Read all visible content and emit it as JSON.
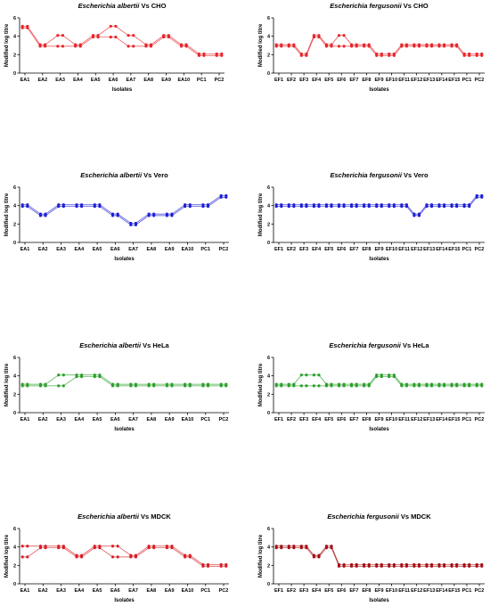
{
  "chart_data": [
    {
      "type": "line",
      "title": "Escherichia albertii Vs CHO",
      "title_italic": "Escherichia albertii",
      "title_rest": " Vs CHO",
      "xlabel": "Isolates",
      "ylabel": "Modified log titre",
      "ylim": [
        0,
        6
      ],
      "yticks": [
        "0",
        "2",
        "4",
        "6"
      ],
      "categories": [
        "EA1",
        "EA2",
        "EA3",
        "EA4",
        "EA5",
        "EA6",
        "EA7",
        "EA8",
        "EA9",
        "EA10",
        "PC1",
        "PC2"
      ],
      "color": "#e8262b",
      "series": [
        {
          "values": [
            5,
            3,
            4,
            3,
            4,
            5,
            4,
            3,
            4,
            3,
            2,
            2
          ]
        },
        {
          "values": [
            5,
            3,
            3,
            3,
            4,
            4,
            3,
            3,
            4,
            3,
            2,
            2
          ]
        }
      ]
    },
    {
      "type": "line",
      "title": "Escherichia fergusonii Vs CHO",
      "title_italic": "Escherichia fergusonii",
      "title_rest": " Vs CHO",
      "xlabel": "Isolates",
      "ylabel": "Modified log titre",
      "ylim": [
        0,
        6
      ],
      "yticks": [
        "0",
        "2",
        "4",
        "6"
      ],
      "categories": [
        "EF1",
        "EF2",
        "EF3",
        "EF4",
        "EF5",
        "EF6",
        "EF7",
        "EF8",
        "EF9",
        "EF10",
        "EF11",
        "EF12",
        "EF13",
        "EF14",
        "EF15",
        "PC1",
        "PC2"
      ],
      "color": "#e8262b",
      "series": [
        {
          "values": [
            3,
            3,
            2,
            4,
            3,
            4,
            3,
            3,
            2,
            2,
            3,
            3,
            3,
            3,
            3,
            2,
            2
          ]
        },
        {
          "values": [
            3,
            3,
            2,
            4,
            3,
            3,
            3,
            3,
            2,
            2,
            3,
            3,
            3,
            3,
            3,
            2,
            2
          ]
        }
      ]
    },
    {
      "type": "line",
      "title": "Escherichia albertii Vs Vero",
      "title_italic": "Escherichia albertii",
      "title_rest": " Vs Vero",
      "xlabel": "Isolates",
      "ylabel": "Modified log titre",
      "ylim": [
        0,
        6
      ],
      "yticks": [
        "0",
        "2",
        "4",
        "6"
      ],
      "categories": [
        "EA1",
        "EA2",
        "EA3",
        "EA4",
        "EA5",
        "EA6",
        "EA7",
        "EA8",
        "EA9",
        "EA10",
        "PC1",
        "PC2"
      ],
      "color": "#1f1fd6",
      "series": [
        {
          "values": [
            4,
            3,
            4,
            4,
            4,
            3,
            2,
            3,
            3,
            4,
            4,
            5
          ]
        },
        {
          "values": [
            4,
            3,
            4,
            4,
            4,
            3,
            2,
            3,
            3,
            4,
            4,
            5
          ]
        }
      ]
    },
    {
      "type": "line",
      "title": "Escherichia fergusonii Vs Vero",
      "title_italic": "Escherichia fergusonii",
      "title_rest": " Vs Vero",
      "xlabel": "Isolates",
      "ylabel": "Modified log titre",
      "ylim": [
        0,
        6
      ],
      "yticks": [
        "0",
        "2",
        "4",
        "6"
      ],
      "categories": [
        "EF1",
        "EF2",
        "EF3",
        "EF4",
        "EF5",
        "EF6",
        "EF7",
        "EF8",
        "EF9",
        "EF10",
        "EF11",
        "EF12",
        "EF13",
        "EF14",
        "EF15",
        "PC1",
        "PC2"
      ],
      "color": "#1f1fd6",
      "series": [
        {
          "values": [
            4,
            4,
            4,
            4,
            4,
            4,
            4,
            4,
            4,
            4,
            4,
            3,
            4,
            4,
            4,
            4,
            5
          ]
        },
        {
          "values": [
            4,
            4,
            4,
            4,
            4,
            4,
            4,
            4,
            4,
            4,
            4,
            3,
            4,
            4,
            4,
            4,
            5
          ]
        }
      ]
    },
    {
      "type": "line",
      "title": "Escherichia albertii Vs HeLa",
      "title_italic": "Escherichia albertii",
      "title_rest": " Vs HeLa",
      "xlabel": "Isolates",
      "ylabel": "Modified log titre",
      "ylim": [
        0,
        6
      ],
      "yticks": [
        "0",
        "2",
        "4",
        "6"
      ],
      "categories": [
        "EA1",
        "EA2",
        "EA3",
        "EA4",
        "EA5",
        "EA6",
        "EA7",
        "EA8",
        "EA9",
        "EA10",
        "PC1",
        "PC2"
      ],
      "color": "#2ca02c",
      "series": [
        {
          "values": [
            3,
            3,
            4,
            4,
            4,
            3,
            3,
            3,
            3,
            3,
            3,
            3
          ]
        },
        {
          "values": [
            3,
            3,
            3,
            4,
            4,
            3,
            3,
            3,
            3,
            3,
            3,
            3
          ]
        }
      ]
    },
    {
      "type": "line",
      "title": "Escherichia fergusonii Vs HeLa",
      "title_italic": "Escherichia fergusonii",
      "title_rest": " Vs HeLa",
      "xlabel": "Isolates",
      "ylabel": "Modified log titre",
      "ylim": [
        0,
        6
      ],
      "yticks": [
        "0",
        "2",
        "4",
        "6"
      ],
      "categories": [
        "EF1",
        "EF2",
        "EF3",
        "EF4",
        "EF5",
        "EF6",
        "EF7",
        "EF8",
        "EF9",
        "EF10",
        "EF11",
        "EF12",
        "EF13",
        "EF14",
        "EF15",
        "PC1",
        "PC2"
      ],
      "color": "#2ca02c",
      "series": [
        {
          "values": [
            3,
            3,
            4,
            4,
            3,
            3,
            3,
            3,
            4,
            4,
            3,
            3,
            3,
            3,
            3,
            3,
            3
          ]
        },
        {
          "values": [
            3,
            3,
            3,
            3,
            3,
            3,
            3,
            3,
            4,
            4,
            3,
            3,
            3,
            3,
            3,
            3,
            3
          ]
        }
      ]
    },
    {
      "type": "line",
      "title": "Escherichia albertii Vs MDCK",
      "title_italic": "Escherichia albertii",
      "title_rest": " Vs MDCK",
      "xlabel": "Isolates",
      "ylabel": "Modified log titre",
      "ylim": [
        0,
        6
      ],
      "yticks": [
        "0",
        "2",
        "4",
        "6"
      ],
      "categories": [
        "EA1",
        "EA2",
        "EA3",
        "EA4",
        "EA5",
        "EA6",
        "EA7",
        "EA8",
        "EA9",
        "EA10",
        "PC1",
        "PC2"
      ],
      "color": "#d81f26",
      "series": [
        {
          "values": [
            4,
            4,
            4,
            3,
            4,
            4,
            3,
            4,
            4,
            3,
            2,
            2
          ]
        },
        {
          "values": [
            3,
            4,
            4,
            3,
            4,
            3,
            3,
            4,
            4,
            3,
            2,
            2
          ]
        }
      ]
    },
    {
      "type": "line",
      "title": "Escherichia fergusonii Vs MDCK",
      "title_italic": "Escherichia fergusonii",
      "title_rest": " Vs MDCK",
      "xlabel": "Isolates",
      "ylabel": "Modified log titre",
      "ylim": [
        0,
        6
      ],
      "yticks": [
        "0",
        "2",
        "4",
        "6"
      ],
      "categories": [
        "EF1",
        "EF2",
        "EF3",
        "EF4",
        "EF5",
        "EF6",
        "EF7",
        "EF8",
        "EF9",
        "EF10",
        "EF11",
        "EF12",
        "EF13",
        "EF14",
        "EF15",
        "PC1",
        "PC2"
      ],
      "color": "#a50f15",
      "series": [
        {
          "values": [
            4,
            4,
            4,
            3,
            4,
            2,
            2,
            2,
            2,
            2,
            2,
            2,
            2,
            2,
            2,
            2,
            2
          ]
        },
        {
          "values": [
            4,
            4,
            4,
            3,
            4,
            2,
            2,
            2,
            2,
            2,
            2,
            2,
            2,
            2,
            2,
            2,
            2
          ]
        }
      ]
    }
  ]
}
